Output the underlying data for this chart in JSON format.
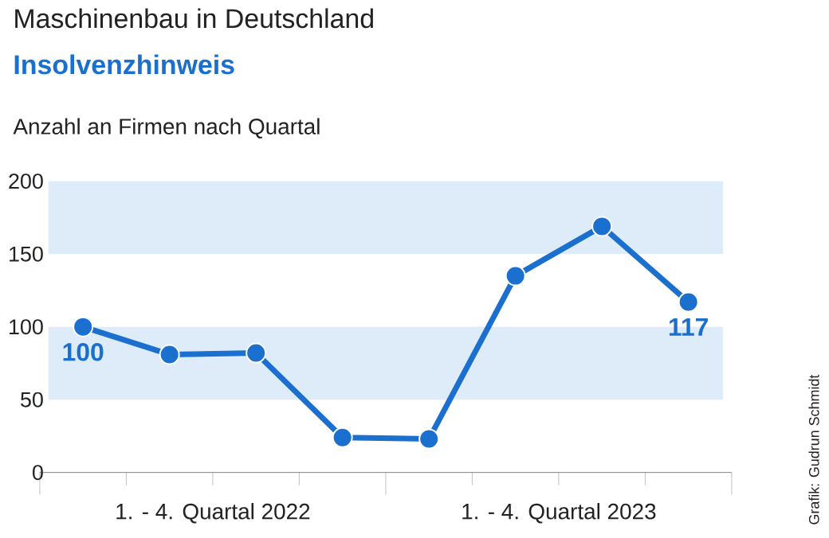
{
  "chart_data": {
    "type": "line",
    "title": "Maschinenbau in Deutschland",
    "subtitle": "Insolvenzhinweis",
    "ylabel": "Anzahl an Firmen nach Quartal",
    "categories": [
      null,
      null,
      null,
      null,
      null,
      null,
      null,
      null
    ],
    "series": [
      {
        "color": "#1a6fcf",
        "values": [
          100,
          81,
          82,
          24,
          23,
          135,
          169,
          117
        ],
        "value_labels": [
          "100",
          null,
          null,
          null,
          null,
          null,
          null,
          "117"
        ]
      }
    ],
    "ylim": [
      0,
      200
    ],
    "yticks": [
      0,
      50,
      100,
      150,
      200
    ],
    "bands": [
      {
        "axis": "y",
        "from": 50,
        "to": 100,
        "color": "#deecf9"
      },
      {
        "axis": "y",
        "from": 150,
        "to": 200,
        "color": "#deecf9"
      }
    ],
    "marker": "circle",
    "line_style": "solid",
    "grid": false,
    "annotations": [
      "1. - 4. Quartal 2022",
      "1. - 4. Quartal 2023",
      "Grafik: Gudrun Schmidt"
    ]
  }
}
